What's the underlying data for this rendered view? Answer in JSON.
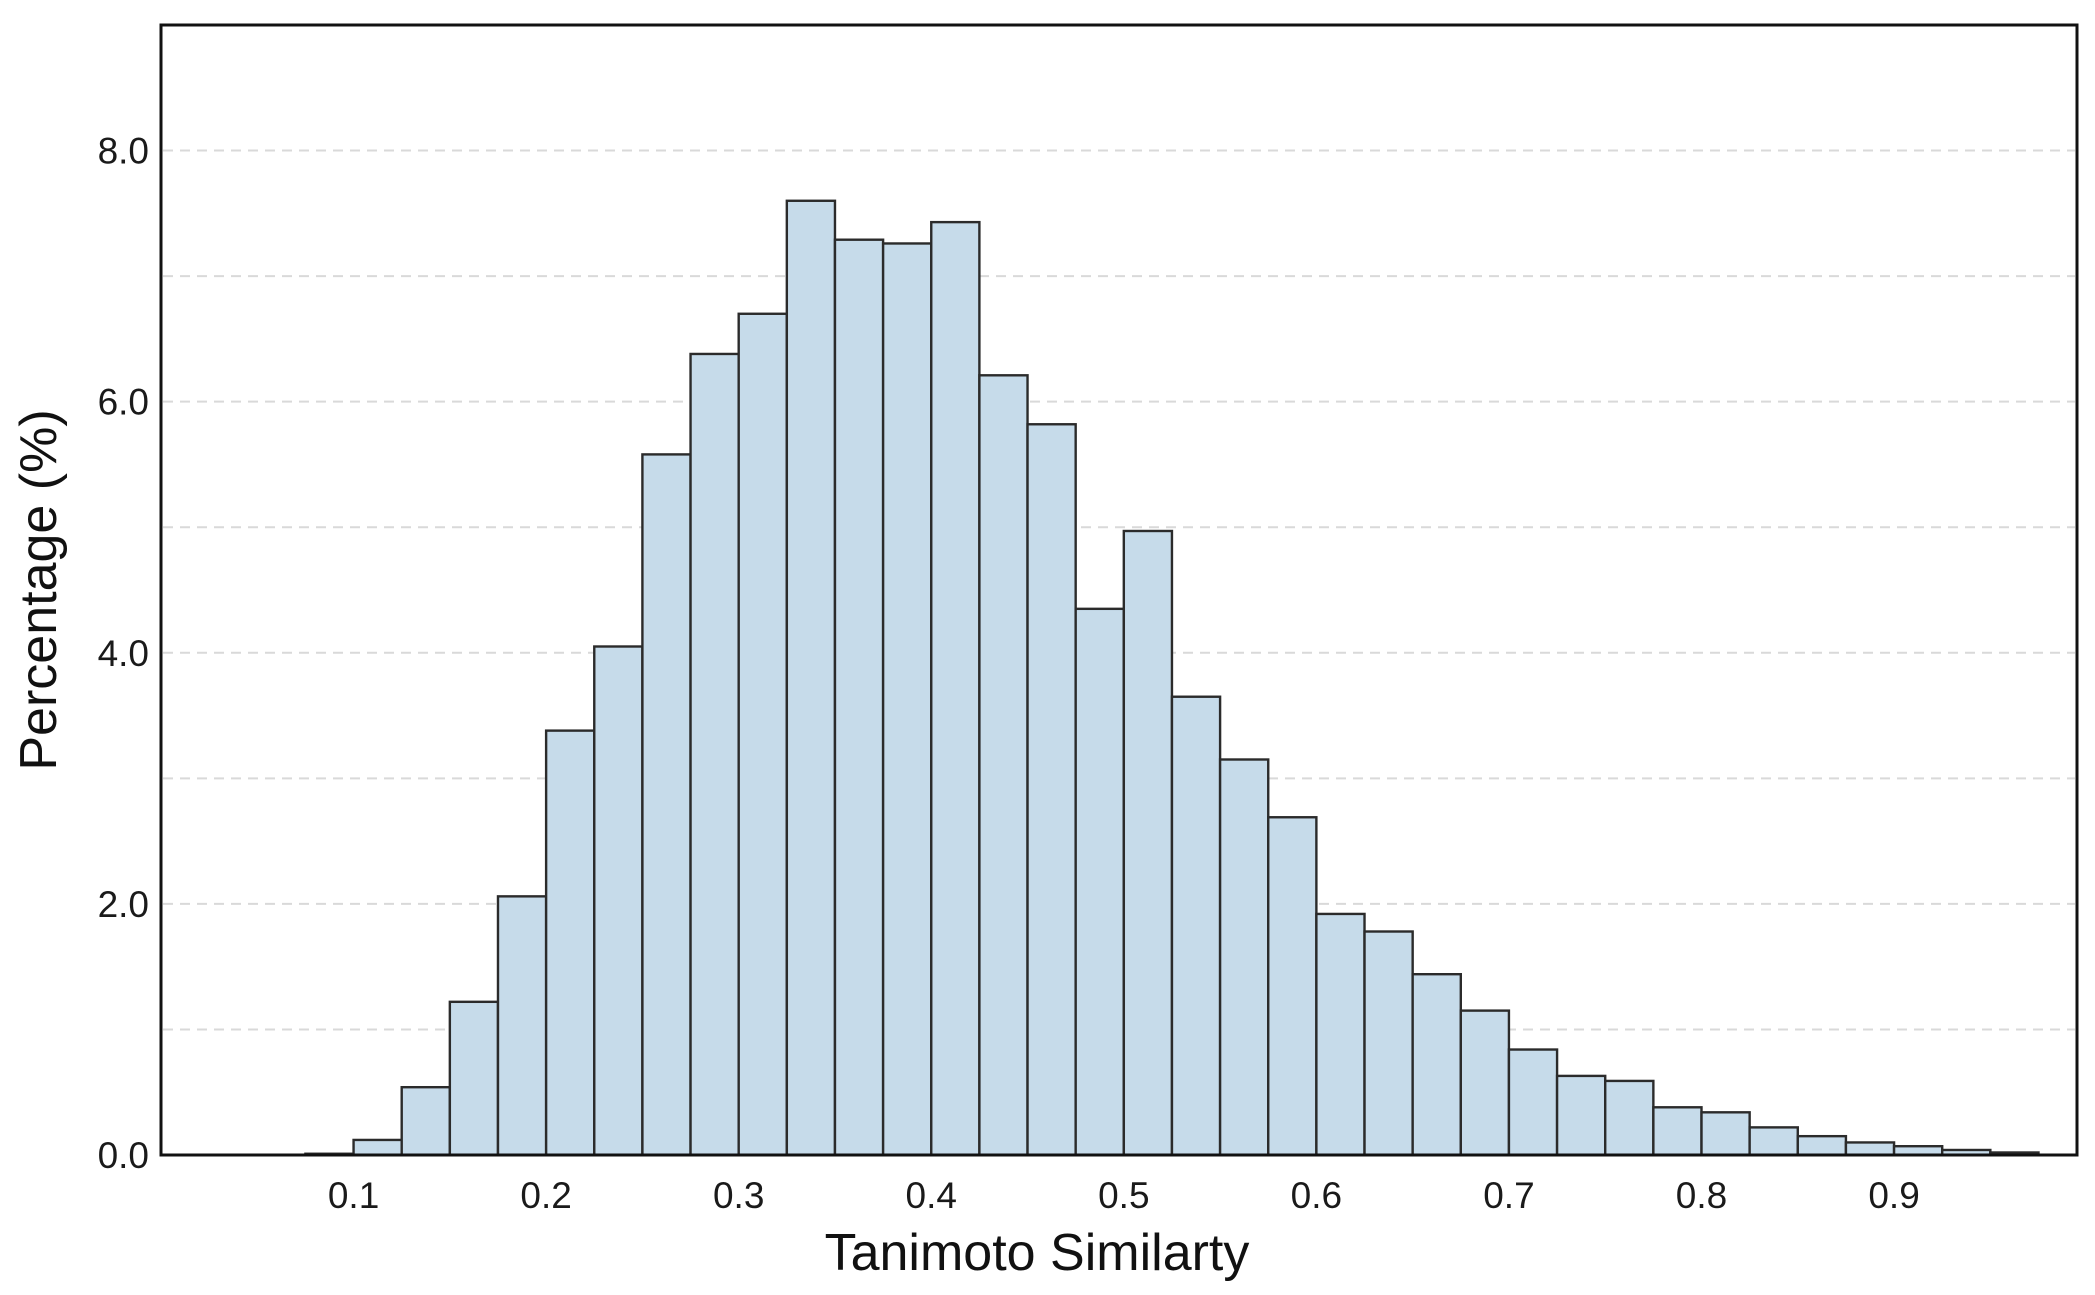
{
  "chart_data": {
    "type": "bar",
    "subtype": "histogram",
    "title": "",
    "xlabel": "Tanimoto Similarty",
    "ylabel": "Percentage (%)",
    "xlim": [
      0.0,
      0.995
    ],
    "ylim": [
      0.0,
      9.0
    ],
    "bin_width": 0.025,
    "bins_start": [
      0.075,
      0.1,
      0.125,
      0.15,
      0.175,
      0.2,
      0.225,
      0.25,
      0.275,
      0.3,
      0.325,
      0.35,
      0.375,
      0.4,
      0.425,
      0.45,
      0.475,
      0.5,
      0.525,
      0.55,
      0.575,
      0.6,
      0.625,
      0.65,
      0.675,
      0.7,
      0.725,
      0.75,
      0.775,
      0.8,
      0.825,
      0.85,
      0.875,
      0.9,
      0.925,
      0.95
    ],
    "values": [
      0.01,
      0.12,
      0.54,
      1.22,
      2.06,
      3.38,
      4.05,
      5.58,
      6.38,
      6.7,
      7.6,
      7.29,
      7.26,
      7.43,
      6.21,
      5.82,
      4.35,
      4.97,
      3.65,
      3.15,
      2.69,
      1.92,
      1.78,
      1.44,
      1.15,
      0.84,
      0.63,
      0.59,
      0.38,
      0.34,
      0.22,
      0.15,
      0.1,
      0.07,
      0.04,
      0.02
    ],
    "xticks": [
      0.1,
      0.2,
      0.3,
      0.4,
      0.5,
      0.6,
      0.7,
      0.8,
      0.9
    ],
    "xtick_labels": [
      "0.1",
      "0.2",
      "0.3",
      "0.4",
      "0.5",
      "0.6",
      "0.7",
      "0.8",
      "0.9"
    ],
    "yticks": [
      0.0,
      2.0,
      4.0,
      6.0,
      8.0
    ],
    "ytick_labels": [
      "0.0",
      "2.0",
      "4.0",
      "6.0",
      "8.0"
    ],
    "gridlines_y": [
      1,
      2,
      3,
      4,
      5,
      6,
      7,
      8
    ],
    "grid": true,
    "colors": {
      "bar_fill": "#c6dbea",
      "bar_edge": "#2b2b2b",
      "grid": "#d9d9d9",
      "frame": "#111111"
    }
  }
}
